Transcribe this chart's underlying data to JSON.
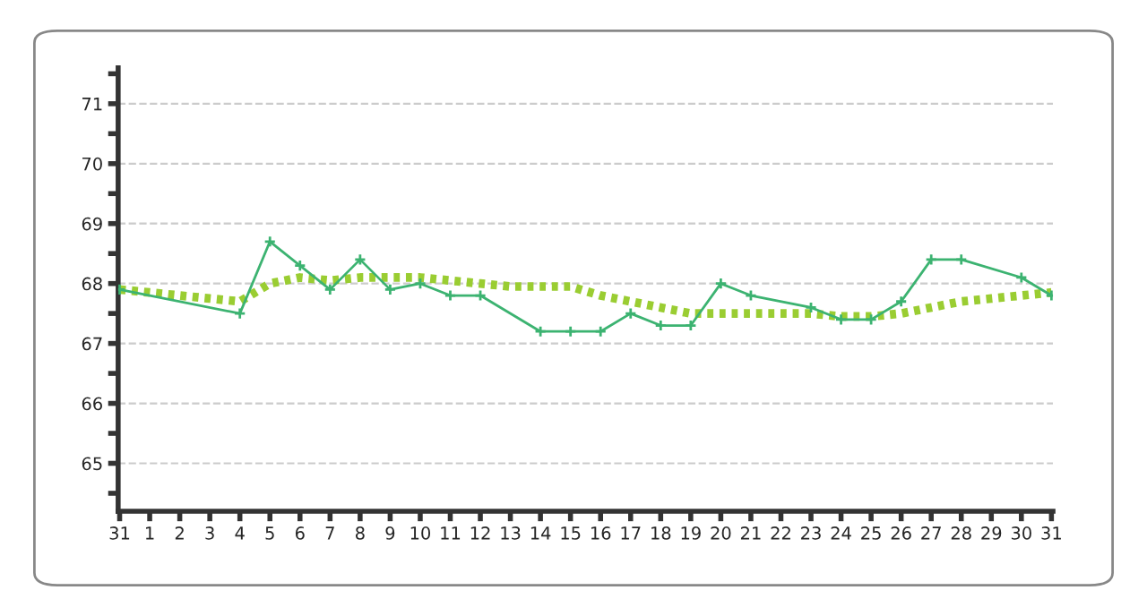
{
  "chart_data": {
    "type": "line",
    "categories": [
      "31",
      "1",
      "2",
      "3",
      "4",
      "5",
      "6",
      "7",
      "8",
      "9",
      "10",
      "11",
      "12",
      "13",
      "14",
      "15",
      "16",
      "17",
      "18",
      "19",
      "20",
      "21",
      "22",
      "23",
      "24",
      "25",
      "26",
      "27",
      "28",
      "29",
      "30",
      "31"
    ],
    "series": [
      {
        "color": "#3cb371",
        "marker": "cross",
        "line_style": "solid",
        "values": [
          67.9,
          null,
          null,
          null,
          67.5,
          68.7,
          68.3,
          67.9,
          68.4,
          67.9,
          68.0,
          67.8,
          67.8,
          null,
          67.2,
          67.2,
          67.2,
          67.5,
          67.3,
          67.3,
          68.0,
          67.8,
          null,
          67.6,
          67.4,
          67.4,
          67.7,
          68.4,
          68.4,
          null,
          68.1,
          67.8
        ]
      },
      {
        "color": "#9acd32",
        "marker": "none",
        "line_style": "dotted",
        "values": [
          67.9,
          67.85,
          67.8,
          67.75,
          67.7,
          68.0,
          68.1,
          68.05,
          68.1,
          68.1,
          68.1,
          68.05,
          68.0,
          67.95,
          67.95,
          67.95,
          67.8,
          67.7,
          67.6,
          67.5,
          67.5,
          67.5,
          67.5,
          67.5,
          67.45,
          67.45,
          67.5,
          67.6,
          67.7,
          67.75,
          67.8,
          67.85
        ]
      }
    ],
    "ylim": [
      64.2,
      71.6
    ],
    "yticks": [
      {
        "value": 64.5,
        "label": null
      },
      65,
      {
        "value": 65.5,
        "label": null
      },
      66,
      {
        "value": 66.5,
        "label": null
      },
      67,
      {
        "value": 67.5,
        "label": null
      },
      68,
      {
        "value": 68.5,
        "label": null
      },
      69,
      {
        "value": 69.5,
        "label": null
      },
      70,
      {
        "value": 70.5,
        "label": null
      },
      71,
      {
        "value": 71.5,
        "label": null
      }
    ],
    "grid": "y",
    "legend": false
  }
}
